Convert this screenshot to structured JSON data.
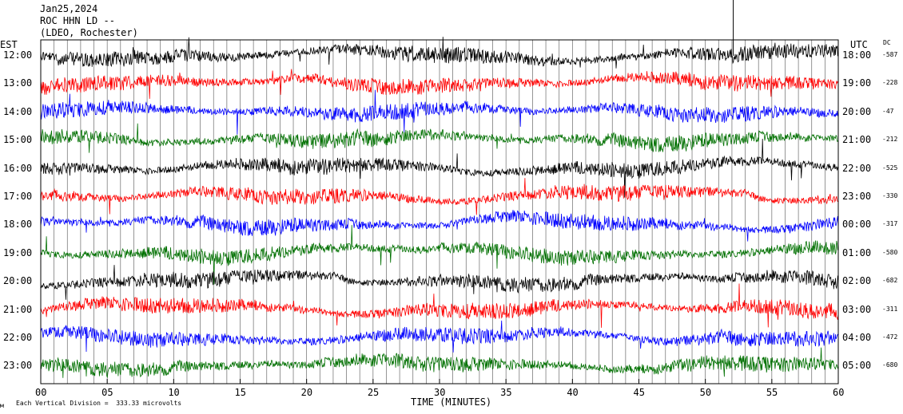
{
  "header": {
    "date": "Jan25,2024",
    "station": "ROC HHN LD --",
    "network": "(LDEO, Rochester)"
  },
  "left_axis_label": "EST",
  "right_axis_label": "UTC",
  "dc_label": "DC",
  "footer": {
    "scale_text": "Each Vertical Division =  333.33 microvolts",
    "corner_mark": "м"
  },
  "chart_data": {
    "type": "line",
    "title": "",
    "xlabel": "TIME (MINUTES)",
    "x_ticks": [
      0,
      5,
      10,
      15,
      20,
      25,
      30,
      35,
      40,
      45,
      50,
      55,
      60
    ],
    "x_tick_labels": [
      "00",
      "05",
      "10",
      "15",
      "20",
      "25",
      "30",
      "35",
      "40",
      "45",
      "50",
      "55",
      "60"
    ],
    "xlim": [
      0,
      60
    ],
    "trace_colors": [
      "#000000",
      "#ff0000",
      "#0000ff",
      "#007000"
    ],
    "vertical_division_microvolts": 333.33,
    "rows": [
      {
        "est": "12:00",
        "utc": "18:00",
        "dc": "-587"
      },
      {
        "est": "13:00",
        "utc": "19:00",
        "dc": "-228"
      },
      {
        "est": "14:00",
        "utc": "20:00",
        "dc": "-47"
      },
      {
        "est": "15:00",
        "utc": "21:00",
        "dc": "-212"
      },
      {
        "est": "16:00",
        "utc": "22:00",
        "dc": "-525"
      },
      {
        "est": "17:00",
        "utc": "23:00",
        "dc": "-330"
      },
      {
        "est": "18:00",
        "utc": "00:00",
        "dc": "-317"
      },
      {
        "est": "19:00",
        "utc": "01:00",
        "dc": "-580"
      },
      {
        "est": "20:00",
        "utc": "02:00",
        "dc": "-682"
      },
      {
        "est": "21:00",
        "utc": "03:00",
        "dc": "-311"
      },
      {
        "est": "22:00",
        "utc": "04:00",
        "dc": "-472"
      },
      {
        "est": "23:00",
        "utc": "05:00",
        "dc": "-680"
      }
    ]
  }
}
